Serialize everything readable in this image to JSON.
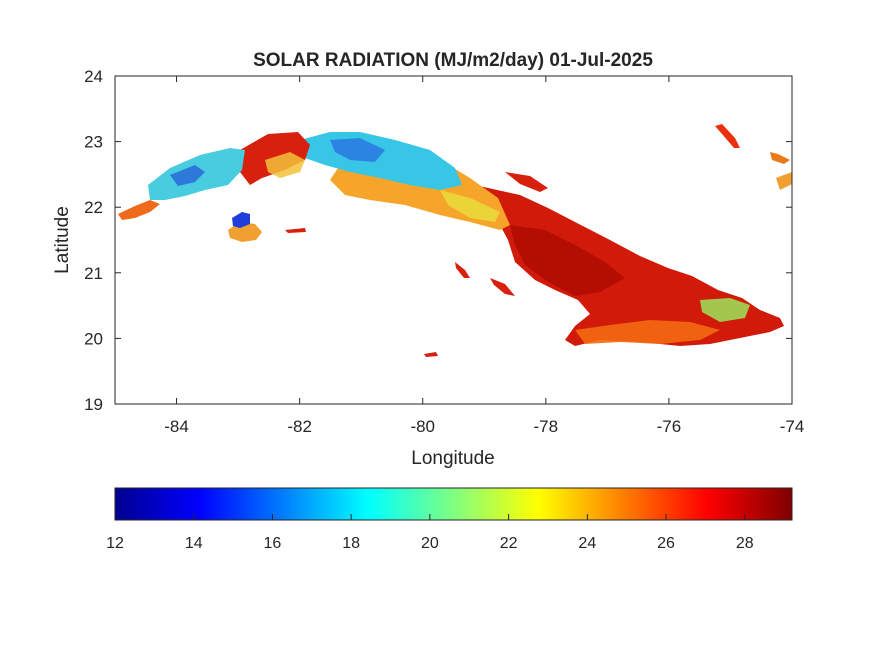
{
  "title": "SOLAR RADIATION (MJ/m2/day) 01-Jul-2025",
  "map": {
    "xlabel": "Longitude",
    "ylabel": "Latitude",
    "xlim": [
      -85,
      -74
    ],
    "ylim": [
      19,
      24
    ],
    "xticks": [
      -84,
      -82,
      -80,
      -78,
      -76,
      -74
    ],
    "yticks": [
      19,
      20,
      21,
      22,
      23,
      24
    ],
    "grid": false,
    "regions": [
      {
        "name": "west",
        "lonRange": [
          -85.0,
          -83.0
        ],
        "level": "low-mid",
        "value_approx": 17
      },
      {
        "name": "isla-de-la-juventud",
        "lonRange": [
          -83.2,
          -82.7
        ],
        "level": "low",
        "value_approx": 15
      },
      {
        "name": "west-central",
        "lonRange": [
          -83.0,
          -81.8
        ],
        "level": "high",
        "value_approx": 27
      },
      {
        "name": "central-north",
        "lonRange": [
          -81.8,
          -79.5
        ],
        "level": "low-mid",
        "value_approx": 18
      },
      {
        "name": "central-east",
        "lonRange": [
          -79.5,
          -78.3
        ],
        "level": "mid-high",
        "value_approx": 24
      },
      {
        "name": "east",
        "lonRange": [
          -78.3,
          -74.2
        ],
        "level": "high",
        "value_approx": 28
      }
    ]
  },
  "colorbar": {
    "colormap": "jet",
    "range": [
      12,
      29.2
    ],
    "ticks": [
      12,
      14,
      16,
      18,
      20,
      22,
      24,
      26,
      28
    ]
  }
}
